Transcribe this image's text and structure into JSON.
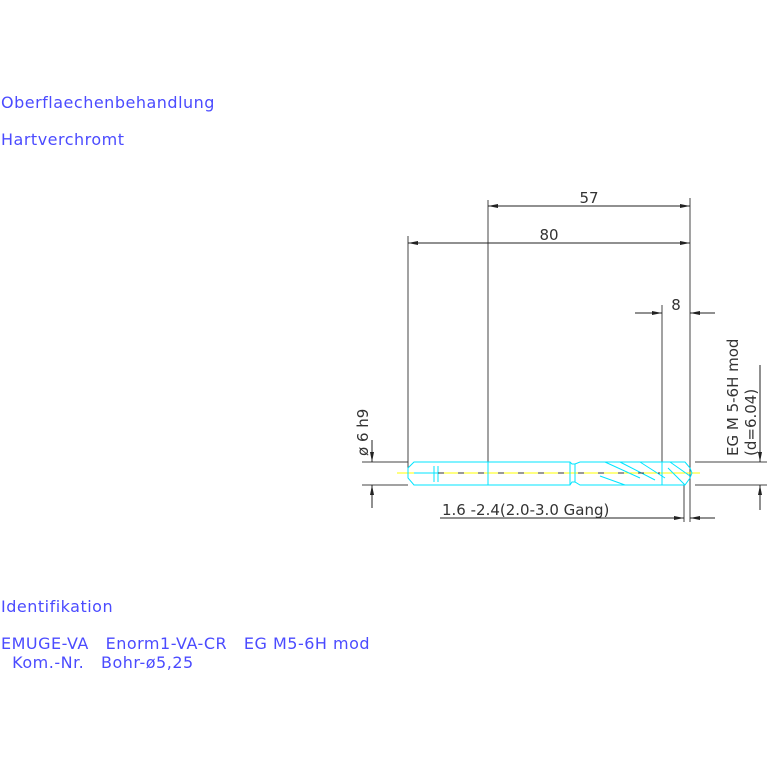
{
  "notes": {
    "surface_label": "Oberflaechenbehandlung",
    "surface_value": "Hartverchromt",
    "ident_label": "Identifikation",
    "ident_line1": "EMUGE-VA   Enorm1-VA-CR   EG M5-6H mod",
    "ident_line2": "  Kom.-Nr.   Bohr-ø5,25"
  },
  "dimensions": {
    "d57": "57",
    "d80": "80",
    "d8": "8",
    "shank": "ø 6 h9",
    "thread": "EG M 5-6H mod",
    "thread_d": "(d=6.04)",
    "chamfer": "1.6 -2.4(2.0-3.0 Gang)"
  },
  "colors": {
    "text": "#4b4bff",
    "tool": "#00e5ff",
    "centerline": "#ffff00",
    "dim": "#333333"
  }
}
